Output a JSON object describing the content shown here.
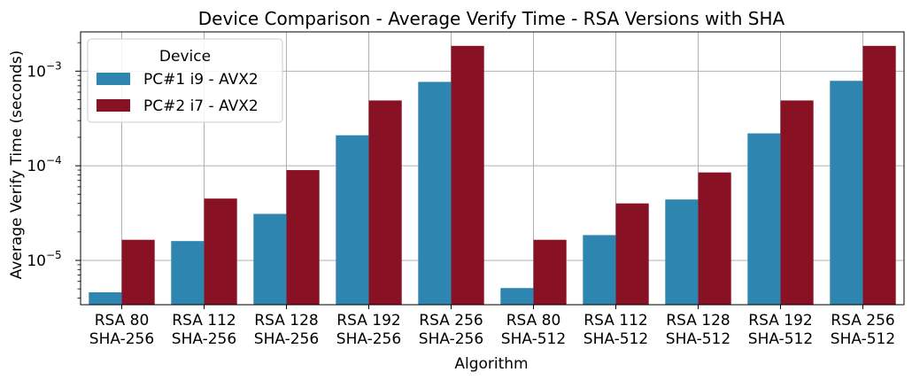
{
  "chart_data": {
    "type": "bar",
    "title": "Device Comparison - Average Verify Time - RSA Versions with SHA",
    "xlabel": "Algorithm",
    "ylabel": "Average Verify Time (seconds)",
    "yscale": "log",
    "ylim": [
      3.4e-06,
      0.0026
    ],
    "grid": true,
    "legend": {
      "title": "Device",
      "placement": "top-left"
    },
    "categories": [
      [
        "RSA 80",
        "SHA-256"
      ],
      [
        "RSA 112",
        "SHA-256"
      ],
      [
        "RSA 128",
        "SHA-256"
      ],
      [
        "RSA 192",
        "SHA-256"
      ],
      [
        "RSA 256",
        "SHA-256"
      ],
      [
        "RSA 80",
        "SHA-512"
      ],
      [
        "RSA 112",
        "SHA-512"
      ],
      [
        "RSA 128",
        "SHA-512"
      ],
      [
        "RSA 192",
        "SHA-512"
      ],
      [
        "RSA 256",
        "SHA-512"
      ]
    ],
    "series": [
      {
        "name": "PC#1 i9 - AVX2",
        "color": "#2e86b0",
        "values": [
          4.6e-06,
          1.6e-05,
          3.1e-05,
          0.00021,
          0.00077,
          5.1e-06,
          1.85e-05,
          4.4e-05,
          0.00022,
          0.00079
        ]
      },
      {
        "name": "PC#2 i7 - AVX2",
        "color": "#881124",
        "values": [
          1.65e-05,
          4.5e-05,
          9e-05,
          0.00049,
          0.00185,
          1.65e-05,
          4e-05,
          8.5e-05,
          0.00049,
          0.00185
        ]
      }
    ],
    "y_ticks": [
      {
        "value": 1e-05,
        "base": "10",
        "exp": "−5"
      },
      {
        "value": 0.0001,
        "base": "10",
        "exp": "−4"
      },
      {
        "value": 0.001,
        "base": "10",
        "exp": "−3"
      }
    ]
  }
}
